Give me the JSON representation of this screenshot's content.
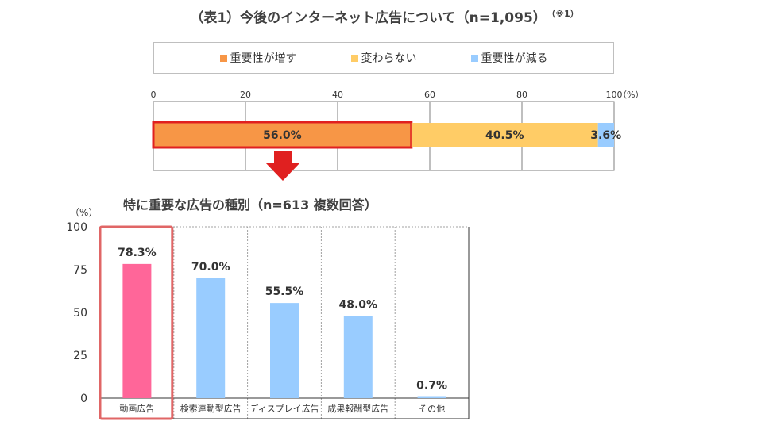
{
  "title": "（表1）今後のインターネット広告について（n=1,095）",
  "title_note": "（※1）",
  "legend": [
    {
      "label": "重要性が増す",
      "color": "#f79646"
    },
    {
      "label": "変わらない",
      "color": "#ffcc66"
    },
    {
      "label": "重要性が減る",
      "color": "#99ccff"
    }
  ],
  "subtitle": "特に重要な広告の種別（n=613 複数回答）",
  "chart_data": [
    {
      "type": "bar",
      "orientation": "horizontal-stacked",
      "xlim": [
        0,
        100
      ],
      "xticks": [
        "0",
        "20",
        "40",
        "60",
        "80",
        "100"
      ],
      "unit_label": "（%）",
      "series": [
        {
          "name": "重要性が増す",
          "values": [
            56.0
          ],
          "label": "56.0%",
          "color": "#f79646"
        },
        {
          "name": "変わらない",
          "values": [
            40.5
          ],
          "label": "40.5%",
          "color": "#ffcc66"
        },
        {
          "name": "重要性が減る",
          "values": [
            3.6
          ],
          "label": "3.6%",
          "color": "#99ccff"
        }
      ],
      "highlight_color": "#e02020",
      "grid": true
    },
    {
      "type": "bar",
      "categories": [
        "動画広告",
        "検索連動型広告",
        "ディスプレイ広告",
        "成果報酬型広告",
        "その他"
      ],
      "values": [
        78.3,
        70.0,
        55.5,
        48.0,
        0.7
      ],
      "labels": [
        "78.3%",
        "70.0%",
        "55.5%",
        "48.0%",
        "0.7%"
      ],
      "colors": [
        "#ff6699",
        "#99ccff",
        "#99ccff",
        "#99ccff",
        "#99ccff"
      ],
      "ylim": [
        0,
        100
      ],
      "yticks": [
        "100",
        "75",
        "50",
        "25",
        "0"
      ],
      "unit_label": "（%）",
      "highlight_color": "#e06666",
      "grid": true
    }
  ]
}
